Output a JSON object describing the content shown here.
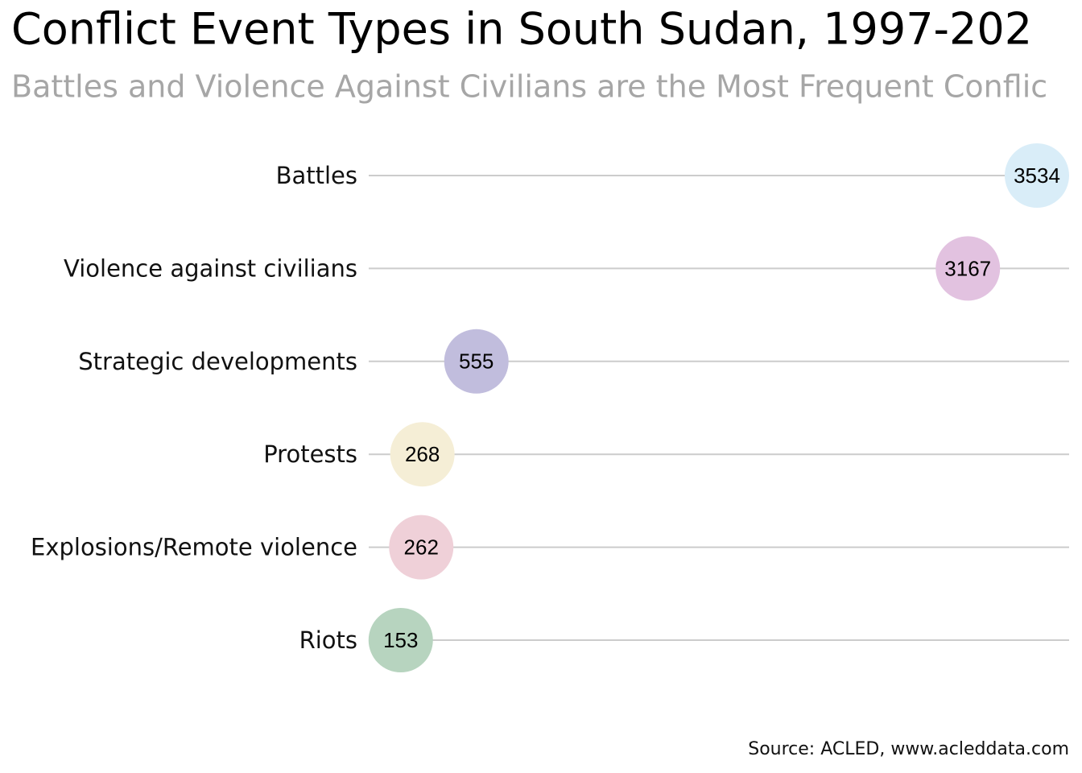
{
  "chart_data": {
    "type": "dot",
    "title": "Conflict Event Types in South Sudan, 1997-202",
    "subtitle": "Battles and Violence Against Civilians are the Most Frequent Conflic",
    "source": "Source: ACLED, www.acleddata.com",
    "categories": [
      "Battles",
      "Violence against civilians",
      "Strategic developments",
      "Protests",
      "Explosions/Remote violence",
      "Riots"
    ],
    "values": [
      3534,
      3167,
      555,
      268,
      262,
      153
    ],
    "colors": [
      "#d9edf8",
      "#e2c2e0",
      "#c1bddd",
      "#f5eed6",
      "#efd0d8",
      "#b7d4bf"
    ]
  }
}
